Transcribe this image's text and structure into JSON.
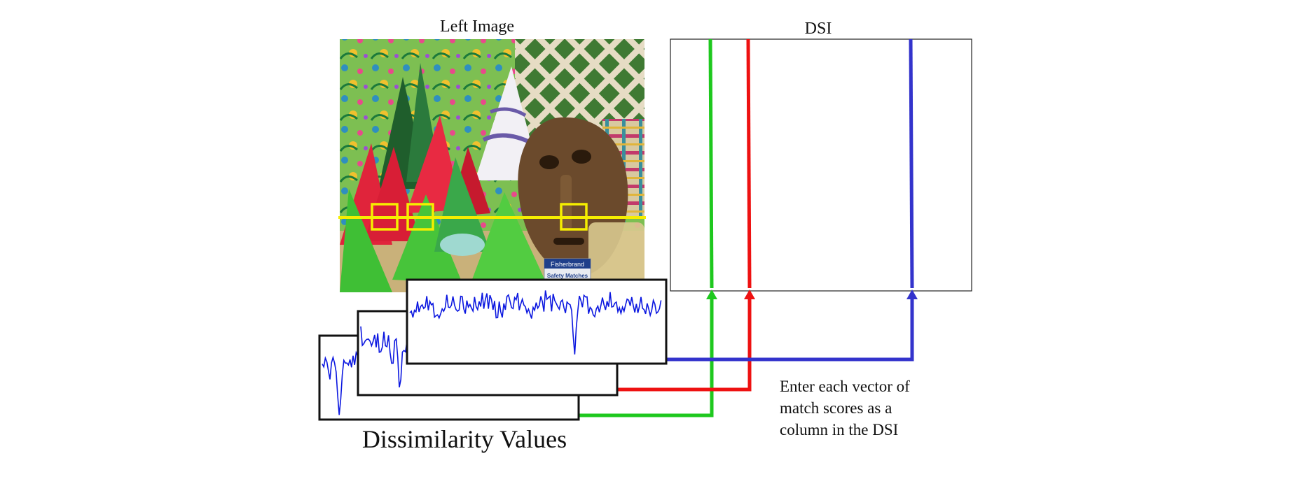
{
  "figure": {
    "left_image_title": "Left Image",
    "dsi_title": "DSI",
    "dissimilarity_caption": "Dissimilarity Values",
    "note_lines": [
      "Enter each vector of",
      "match scores as a",
      "column in the DSI"
    ],
    "matchbox_brand": "Fisherbrand",
    "matchbox_product": "Safety Matches"
  },
  "colors": {
    "scanline": "#f5ee00",
    "window_box": "#f5ee00",
    "green_path": "#1ec81e",
    "red_path": "#ee1111",
    "blue_path": "#3333cc",
    "curve": "#0b17e0",
    "frame": "#111111"
  },
  "windows": [
    {
      "name": "window-1",
      "path_color": "green"
    },
    {
      "name": "window-2",
      "path_color": "red"
    },
    {
      "name": "window-3",
      "path_color": "blue"
    }
  ]
}
